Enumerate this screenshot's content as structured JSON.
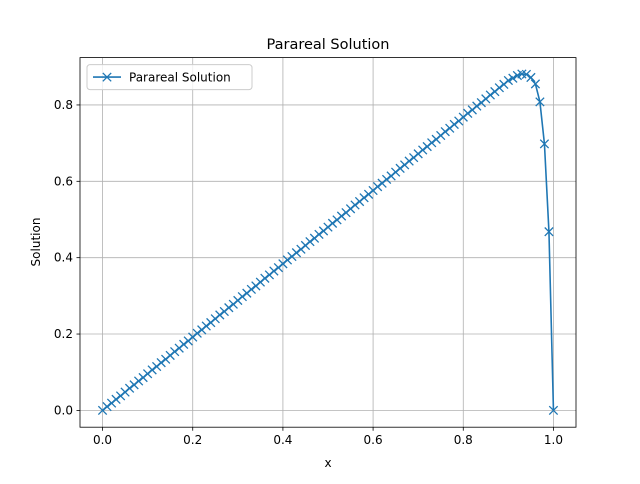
{
  "chart_data": {
    "type": "line",
    "title": "Parareal Solution",
    "x_label": "x",
    "y_label": "Solution",
    "x": [
      0,
      0.01,
      0.02,
      0.03,
      0.04,
      0.05,
      0.06,
      0.07,
      0.08,
      0.09,
      0.1,
      0.11,
      0.12,
      0.13,
      0.14,
      0.15,
      0.16,
      0.17,
      0.18,
      0.19,
      0.2,
      0.21,
      0.22,
      0.23,
      0.24,
      0.25,
      0.26,
      0.27,
      0.28,
      0.29,
      0.3,
      0.31,
      0.32,
      0.33,
      0.34,
      0.35,
      0.36,
      0.37,
      0.38,
      0.39,
      0.4,
      0.41,
      0.42,
      0.43,
      0.44,
      0.45,
      0.46,
      0.47,
      0.48,
      0.49,
      0.5,
      0.51,
      0.52,
      0.53,
      0.54,
      0.55,
      0.56,
      0.57,
      0.58,
      0.59,
      0.6,
      0.61,
      0.62,
      0.63,
      0.64,
      0.65,
      0.66,
      0.67,
      0.68,
      0.69,
      0.7,
      0.71,
      0.72,
      0.73,
      0.74,
      0.75,
      0.76,
      0.77,
      0.78,
      0.79,
      0.8,
      0.81,
      0.82,
      0.83,
      0.84,
      0.85,
      0.86,
      0.87,
      0.88,
      0.89,
      0.9,
      0.91,
      0.92,
      0.93,
      0.94,
      0.95,
      0.96,
      0.97,
      0.98,
      0.99,
      1
    ],
    "series": [
      {
        "name": "Parareal Solution",
        "color": "#1f77b4",
        "marker": "x",
        "values": [
          0,
          0.01,
          0.019,
          0.029,
          0.038,
          0.048,
          0.058,
          0.067,
          0.077,
          0.086,
          0.096,
          0.106,
          0.115,
          0.125,
          0.134,
          0.144,
          0.154,
          0.163,
          0.173,
          0.182,
          0.192,
          0.202,
          0.211,
          0.221,
          0.23,
          0.24,
          0.25,
          0.259,
          0.269,
          0.278,
          0.288,
          0.298,
          0.307,
          0.317,
          0.326,
          0.336,
          0.346,
          0.355,
          0.365,
          0.374,
          0.384,
          0.394,
          0.403,
          0.413,
          0.422,
          0.432,
          0.442,
          0.451,
          0.461,
          0.47,
          0.48,
          0.49,
          0.499,
          0.509,
          0.518,
          0.528,
          0.538,
          0.547,
          0.557,
          0.566,
          0.576,
          0.586,
          0.595,
          0.605,
          0.614,
          0.624,
          0.634,
          0.643,
          0.653,
          0.662,
          0.672,
          0.682,
          0.691,
          0.701,
          0.71,
          0.72,
          0.73,
          0.739,
          0.749,
          0.758,
          0.768,
          0.778,
          0.787,
          0.797,
          0.806,
          0.816,
          0.826,
          0.835,
          0.845,
          0.854,
          0.864,
          0.87,
          0.877,
          0.881,
          0.88,
          0.872,
          0.855,
          0.808,
          0.698,
          0.468,
          0
        ]
      }
    ],
    "xlim": [
      -0.05,
      1.05
    ],
    "xticks": [
      {
        "value": 0,
        "label": "0.0"
      },
      0.2,
      0.4,
      0.6,
      0.8,
      {
        "value": 1,
        "label": "1.0"
      }
    ],
    "ylim": [
      -0.044,
      0.924
    ],
    "yticks": [
      {
        "value": 0,
        "label": "0.0"
      },
      0.2,
      0.4,
      0.6,
      0.8
    ],
    "grid": true,
    "legend": "upper-left"
  }
}
